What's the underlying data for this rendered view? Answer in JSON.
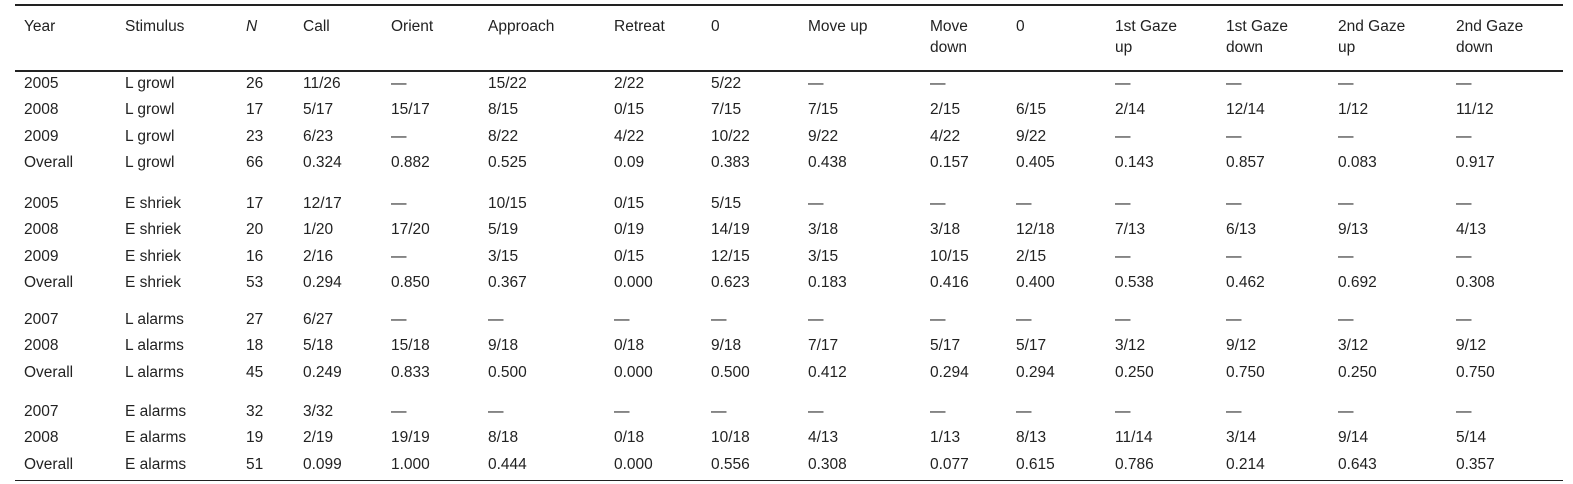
{
  "table": {
    "columns": [
      "Year",
      "Stimulus",
      "N",
      "Call",
      "Orient",
      "Approach",
      "Retreat",
      "0",
      "Move up",
      "Move down",
      "0",
      "1st Gaze up",
      "1st Gaze down",
      "2nd Gaze up",
      "2nd Gaze down"
    ],
    "groups": [
      {
        "rows": [
          [
            "2005",
            "L growl",
            "26",
            "11/26",
            "—",
            "15/22",
            "2/22",
            "5/22",
            "—",
            "—",
            null,
            "—",
            "—",
            "—",
            "—"
          ],
          [
            "2008",
            "L growl",
            "17",
            "5/17",
            "15/17",
            "8/15",
            "0/15",
            "7/15",
            "7/15",
            "2/15",
            "6/15",
            "2/14",
            "12/14",
            "1/12",
            "11/12"
          ],
          [
            "2009",
            "L growl",
            "23",
            "6/23",
            "—",
            "8/22",
            "4/22",
            "10/22",
            "9/22",
            "4/22",
            "9/22",
            "—",
            "—",
            "—",
            "—"
          ],
          [
            "Overall",
            "L growl",
            "66",
            "0.324",
            "0.882",
            "0.525",
            "0.09",
            "0.383",
            "0.438",
            "0.157",
            "0.405",
            "0.143",
            "0.857",
            "0.083",
            "0.917"
          ]
        ]
      },
      {
        "rows": [
          [
            "2005",
            "E shriek",
            "17",
            "12/17",
            "—",
            "10/15",
            "0/15",
            "5/15",
            "—",
            "—",
            "—",
            "—",
            "—",
            "—",
            "—"
          ],
          [
            "2008",
            "E shriek",
            "20",
            "1/20",
            "17/20",
            "5/19",
            "0/19",
            "14/19",
            "3/18",
            "3/18",
            "12/18",
            "7/13",
            "6/13",
            "9/13",
            "4/13"
          ],
          [
            "2009",
            "E shriek",
            "16",
            "2/16",
            "—",
            "3/15",
            "0/15",
            "12/15",
            "3/15",
            "10/15",
            "2/15",
            "—",
            "—",
            "—",
            "—"
          ],
          [
            "Overall",
            "E shriek",
            "53",
            "0.294",
            "0.850",
            "0.367",
            "0.000",
            "0.623",
            "0.183",
            "0.416",
            "0.400",
            "0.538",
            "0.462",
            "0.692",
            "0.308"
          ]
        ]
      },
      {
        "rows": [
          [
            "2007",
            "L alarms",
            "27",
            "6/27",
            "—",
            "—",
            "—",
            "—",
            "—",
            "—",
            "—",
            "—",
            "—",
            "—",
            "—"
          ],
          [
            "2008",
            "L alarms",
            "18",
            "5/18",
            "15/18",
            "9/18",
            "0/18",
            "9/18",
            "7/17",
            "5/17",
            "5/17",
            "3/12",
            "9/12",
            "3/12",
            "9/12"
          ],
          [
            "Overall",
            "L alarms",
            "45",
            "0.249",
            "0.833",
            "0.500",
            "0.000",
            "0.500",
            "0.412",
            "0.294",
            "0.294",
            "0.250",
            "0.750",
            "0.250",
            "0.750"
          ]
        ]
      },
      {
        "rows": [
          [
            "2007",
            "E alarms",
            "32",
            "3/32",
            "—",
            "—",
            "—",
            "—",
            "—",
            "—",
            "—",
            "—",
            "—",
            "—",
            "—"
          ],
          [
            "2008",
            "E alarms",
            "19",
            "2/19",
            "19/19",
            "8/18",
            "0/18",
            "10/18",
            "4/13",
            "1/13",
            "8/13",
            "11/14",
            "3/14",
            "9/14",
            "5/14"
          ],
          [
            "Overall",
            "E alarms",
            "51",
            "0.099",
            "1.000",
            "0.444",
            "0.000",
            "0.556",
            "0.308",
            "0.077",
            "0.615",
            "0.786",
            "0.214",
            "0.643",
            "0.357"
          ]
        ]
      }
    ]
  }
}
